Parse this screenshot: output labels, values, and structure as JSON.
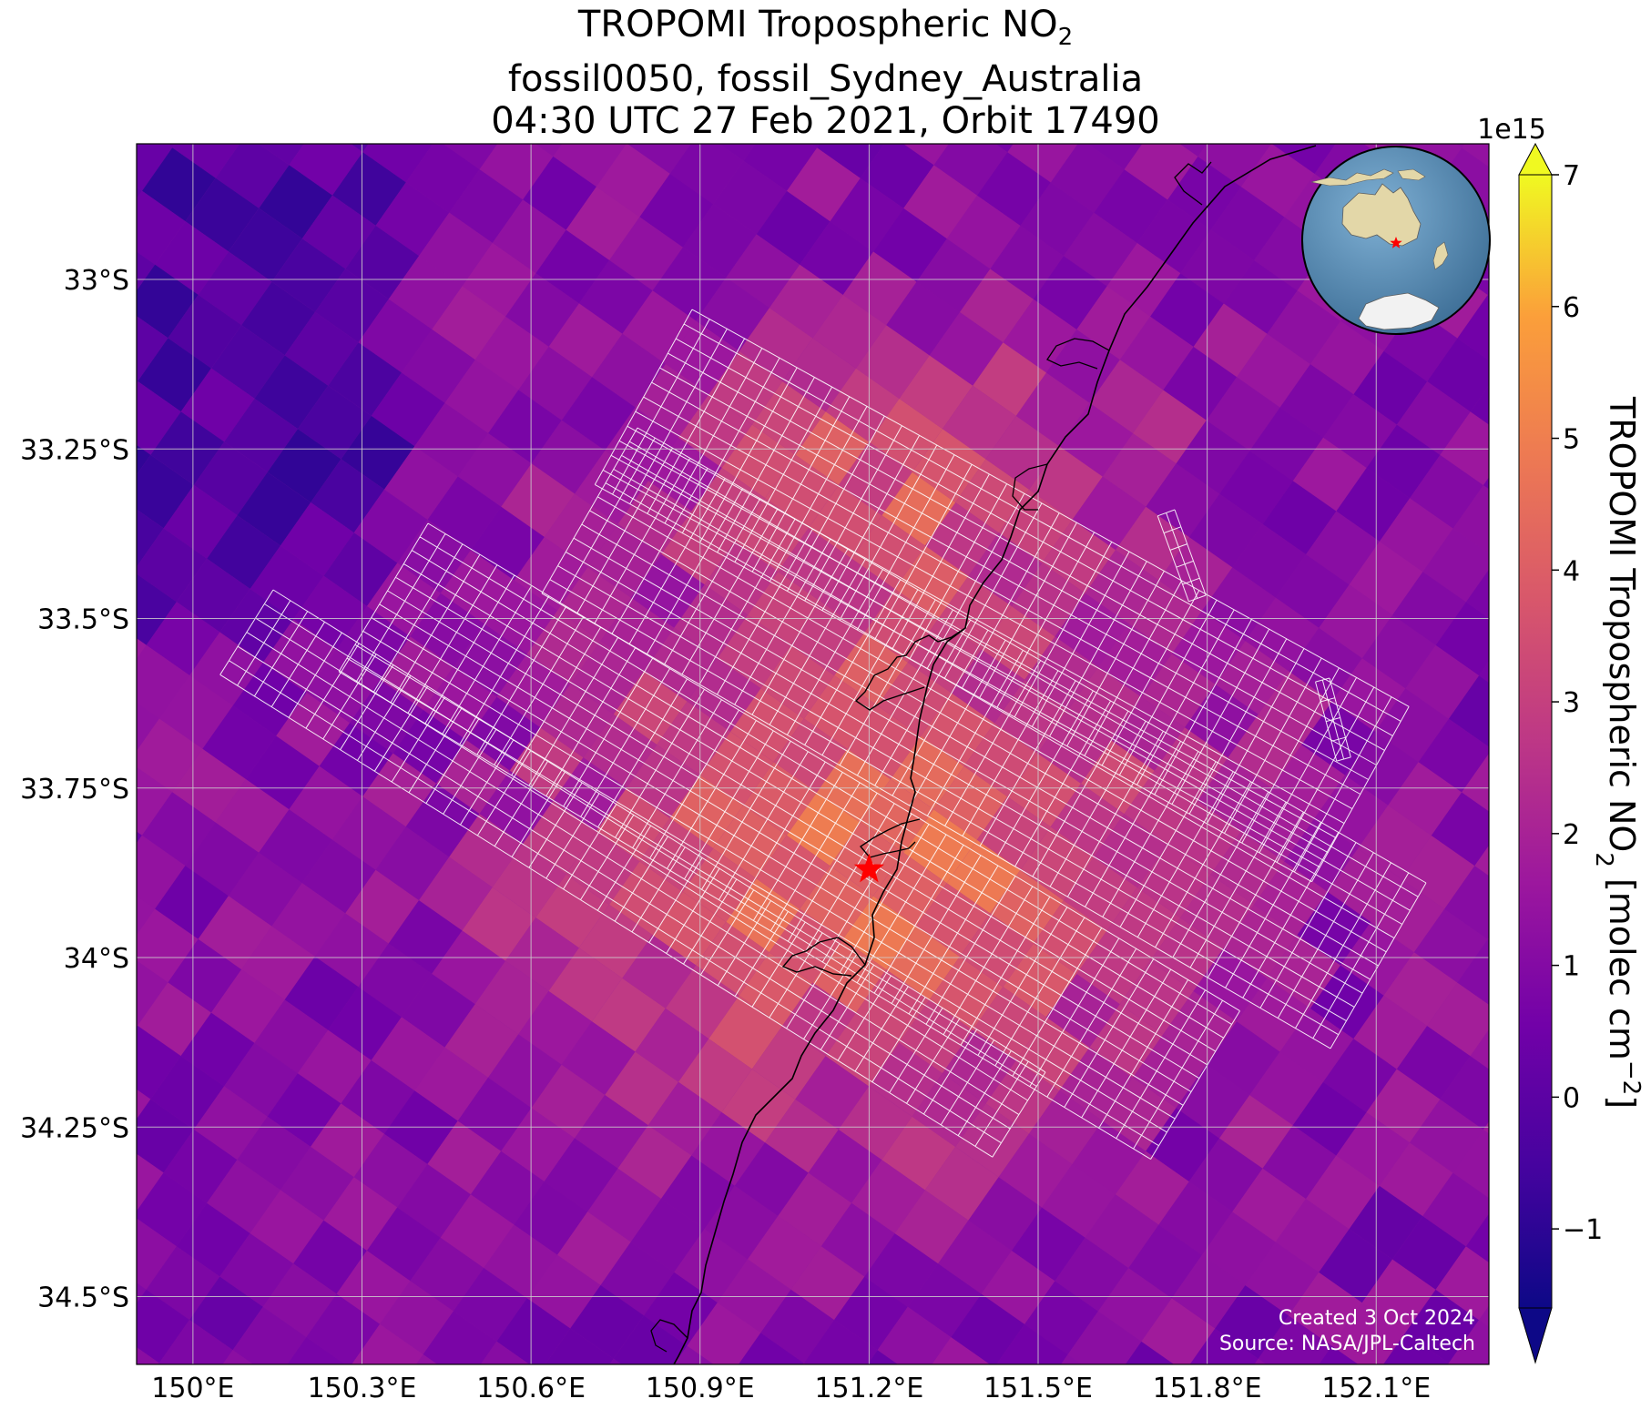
{
  "title": {
    "line1_prefix": "TROPOMI Tropospheric NO",
    "line1_sub": "2",
    "line2": "fossil0050, fossil_Sydney_Australia",
    "line3": "04:30 UTC 27 Feb 2021, Orbit 17490"
  },
  "map": {
    "lon_range": [
      149.9,
      152.3
    ],
    "lat_range": [
      -34.6,
      -32.8
    ],
    "lon_ticks": [
      150.0,
      150.3,
      150.6,
      150.9,
      151.2,
      151.5,
      151.8,
      152.1
    ],
    "lon_tick_labels": [
      "150°E",
      "150.3°E",
      "150.6°E",
      "150.9°E",
      "151.2°E",
      "151.5°E",
      "151.8°E",
      "152.1°E"
    ],
    "lat_ticks": [
      -33.0,
      -33.25,
      -33.5,
      -33.75,
      -34.0,
      -34.25,
      -34.5
    ],
    "lat_tick_labels": [
      "33°S",
      "33.25°S",
      "33.5°S",
      "33.75°S",
      "34°S",
      "34.25°S",
      "34.5°S"
    ],
    "gridlines": true,
    "target_marker": {
      "lon": 151.2,
      "lat": -33.87,
      "color": "#ff0000",
      "symbol": "star"
    },
    "credit_line1": "Created 3 Oct 2024",
    "credit_line2": "Source: NASA/JPL-Caltech"
  },
  "colorbar": {
    "colormap": "plasma",
    "vmin": -1.6,
    "vmax": 7.0,
    "extend": "both",
    "ticks": [
      -1,
      0,
      1,
      2,
      3,
      4,
      5,
      6,
      7
    ],
    "tick_labels": [
      "−1",
      "0",
      "1",
      "2",
      "3",
      "4",
      "5",
      "6",
      "7"
    ],
    "offset_label": "1e15",
    "label_prefix": "TROPOMI Tropospheric NO",
    "label_sub": "2",
    "label_suffix": " [molec cm",
    "label_sup": "−2",
    "label_end": "]"
  },
  "inset_globe": {
    "target_color": "#ff0000"
  },
  "colors": {
    "grid": "#cccccc",
    "coastline": "#000000",
    "footprint": "#ffffff",
    "ocean": "#4f88b0",
    "land": "#e3d7a8",
    "ice": "#f2f2f2"
  }
}
